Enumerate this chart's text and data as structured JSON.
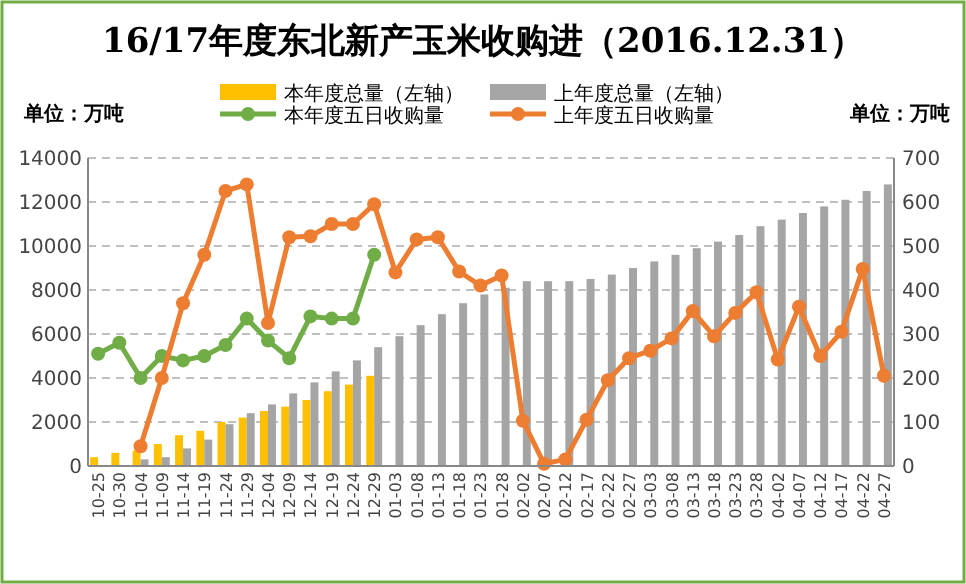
{
  "chart_data": {
    "type": "bar",
    "title": "16/17年度东北新产玉米收购进（2016.12.31）",
    "ylabel": "单位：万吨",
    "y2label": "单位：万吨",
    "categories": [
      "10-25",
      "10-30",
      "11-04",
      "11-09",
      "11-14",
      "11-19",
      "11-24",
      "11-29",
      "12-04",
      "12-09",
      "12-14",
      "12-19",
      "12-24",
      "12-29",
      "01-03",
      "01-08",
      "01-13",
      "01-18",
      "01-23",
      "01-28",
      "02-02",
      "02-07",
      "02-12",
      "02-17",
      "02-22",
      "02-27",
      "03-03",
      "03-08",
      "03-13",
      "03-18",
      "03-23",
      "03-28",
      "04-02",
      "04-07",
      "04-12",
      "04-17",
      "04-22",
      "04-27"
    ],
    "series": [
      {
        "name": "本年度总量（左轴）",
        "color": "#ffc000",
        "values": [
          400,
          600,
          700,
          1000,
          1400,
          1600,
          2000,
          2200,
          2500,
          2700,
          3000,
          3400,
          3700,
          4100,
          null,
          null,
          null,
          null,
          null,
          null,
          null,
          null,
          null,
          null,
          null,
          null,
          null,
          null,
          null,
          null,
          null,
          null,
          null,
          null,
          null,
          null,
          null,
          null
        ]
      },
      {
        "name": "上年度总量（左轴）",
        "color": "#a5a5a5",
        "values": [
          null,
          null,
          300,
          400,
          800,
          1200,
          1900,
          2400,
          2800,
          3300,
          3800,
          4300,
          4800,
          5400,
          5900,
          6400,
          6900,
          7400,
          7800,
          8100,
          8400,
          8400,
          8400,
          8500,
          8700,
          9000,
          9300,
          9600,
          9900,
          10200,
          10500,
          10900,
          11200,
          11500,
          11800,
          12100,
          12500,
          12800
        ]
      },
      {
        "name": "本年度五日收购量",
        "type": "line",
        "axis": "y2",
        "color": "#70ad47",
        "values": [
          255,
          280,
          200,
          250,
          240,
          250,
          275,
          335,
          285,
          245,
          340,
          335,
          335,
          480,
          null,
          null,
          null,
          null,
          null,
          null,
          null,
          null,
          null,
          null,
          null,
          null,
          null,
          null,
          null,
          null,
          null,
          null,
          null,
          null,
          null,
          null,
          null,
          null
        ]
      },
      {
        "name": "上年度五日收购量",
        "type": "line",
        "axis": "y2",
        "color": "#ed7d31",
        "values": [
          null,
          null,
          45,
          200,
          370,
          480,
          625,
          640,
          325,
          520,
          522,
          550,
          550,
          595,
          440,
          515,
          520,
          442,
          410,
          433,
          103,
          5,
          15,
          105,
          195,
          245,
          262,
          290,
          352,
          295,
          348,
          395,
          242,
          362,
          250,
          305,
          448,
          205
        ]
      }
    ],
    "ylim": [
      0,
      14000
    ],
    "yticks": [
      0,
      2000,
      4000,
      6000,
      8000,
      10000,
      12000,
      14000
    ],
    "y2lim": [
      0,
      700
    ],
    "y2ticks": [
      0,
      100,
      200,
      300,
      400,
      500,
      600,
      700
    ],
    "grid": "y",
    "legend": "top",
    "marker": "circle",
    "line_style": "solid"
  }
}
